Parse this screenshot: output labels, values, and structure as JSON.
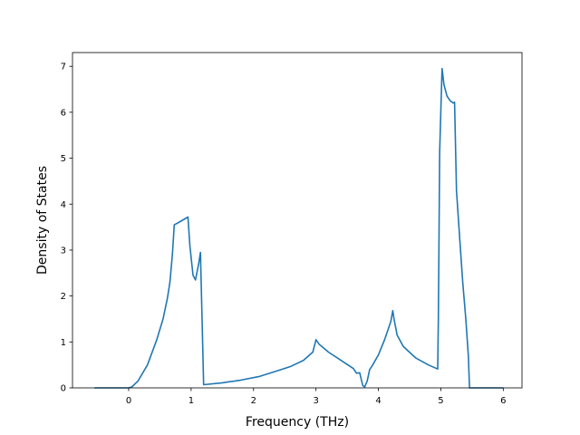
{
  "chart_data": {
    "type": "line",
    "title": "",
    "xlabel": "Frequency (THz)",
    "ylabel": "Density of States",
    "xlim": [
      -0.9,
      6.3
    ],
    "ylim": [
      0,
      7.3
    ],
    "xticks": [
      0,
      1,
      2,
      3,
      4,
      5,
      6
    ],
    "xtick_labels": [
      "0",
      "1",
      "2",
      "3",
      "4",
      "5",
      "6"
    ],
    "yticks": [
      0,
      1,
      2,
      3,
      4,
      5,
      6,
      7
    ],
    "ytick_labels": [
      "0",
      "1",
      "2",
      "3",
      "4",
      "5",
      "6",
      "7"
    ],
    "grid": false,
    "legend": "none",
    "series": [
      {
        "color": "#1f77b4",
        "x": [
          -0.55,
          0.0,
          0.05,
          0.15,
          0.3,
          0.45,
          0.55,
          0.62,
          0.66,
          0.7,
          0.73,
          0.8,
          0.9,
          0.95,
          0.98,
          1.03,
          1.07,
          1.12,
          1.15,
          1.2,
          1.5,
          1.8,
          2.1,
          2.4,
          2.6,
          2.8,
          2.95,
          3.0,
          3.05,
          3.2,
          3.4,
          3.6,
          3.65,
          3.7,
          3.75,
          3.78,
          3.82,
          3.86,
          3.9,
          4.0,
          4.1,
          4.15,
          4.2,
          4.23,
          4.25,
          4.3,
          4.4,
          4.6,
          4.8,
          4.95,
          4.96,
          4.97,
          4.98,
          5.0,
          5.02,
          5.05,
          5.1,
          5.15,
          5.2,
          5.22,
          5.25,
          5.3,
          5.35,
          5.4,
          5.44,
          5.46,
          5.5,
          6.0
        ],
        "y": [
          0.0,
          0.0,
          0.02,
          0.15,
          0.5,
          1.05,
          1.5,
          1.95,
          2.3,
          2.9,
          3.55,
          3.6,
          3.68,
          3.72,
          3.1,
          2.45,
          2.35,
          2.7,
          2.95,
          0.07,
          0.11,
          0.17,
          0.25,
          0.38,
          0.47,
          0.6,
          0.78,
          1.05,
          0.95,
          0.78,
          0.6,
          0.42,
          0.32,
          0.33,
          0.05,
          0.02,
          0.15,
          0.4,
          0.48,
          0.72,
          1.05,
          1.25,
          1.45,
          1.68,
          1.5,
          1.15,
          0.9,
          0.65,
          0.5,
          0.41,
          1.5,
          3.2,
          5.1,
          6.0,
          6.95,
          6.6,
          6.35,
          6.25,
          6.2,
          6.22,
          4.3,
          3.3,
          2.3,
          1.5,
          0.7,
          0.0,
          0.0,
          0.0
        ]
      }
    ]
  }
}
